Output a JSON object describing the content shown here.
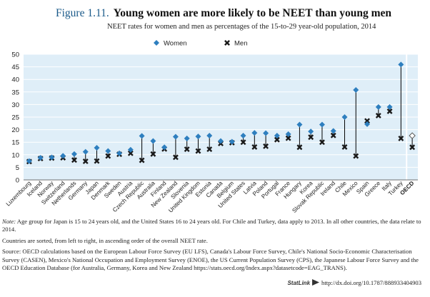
{
  "header": {
    "figure_number": "Figure 1.11.",
    "title": "Young women are more likely to be NEET than young men",
    "subtitle": "NEET rates for women and men as percentages of the 15-to-29 year-old population, 2014"
  },
  "chart_data": {
    "type": "scatter",
    "categories": [
      "Luxembourg",
      "Iceland",
      "Norway",
      "Switzerland",
      "Netherlands",
      "Germany",
      "Japan",
      "Denmark",
      "Sweden",
      "Austria",
      "Czech Republic",
      "Australia",
      "Finland",
      "New Zealand",
      "Slovenia",
      "United Kingdom",
      "Estonia",
      "Canada",
      "Belgium",
      "United States",
      "Latvia",
      "Poland",
      "Portugal",
      "France",
      "Hungary",
      "Korea",
      "Slovak Republic",
      "Ireland",
      "Chile",
      "Mexico",
      "Spain",
      "Greece",
      "Italy",
      "Turkey",
      "OECD"
    ],
    "series": [
      {
        "name": "Women",
        "marker": "diamond",
        "color": "#2e7fbf",
        "values": [
          7.5,
          8.8,
          9.0,
          9.6,
          10.3,
          11.2,
          12.8,
          11.5,
          10.6,
          12.0,
          17.5,
          15.5,
          13.0,
          17.2,
          16.5,
          17.3,
          17.6,
          15.5,
          15.2,
          17.6,
          18.7,
          18.6,
          17.6,
          18.2,
          22.0,
          19.3,
          22.0,
          19.5,
          25.0,
          35.8,
          22.2,
          29.0,
          29.0,
          45.9,
          17.6
        ]
      },
      {
        "name": "Men",
        "marker": "x",
        "color": "#1a1a1a",
        "values": [
          7.3,
          8.5,
          8.7,
          8.8,
          7.9,
          7.4,
          7.5,
          9.5,
          10.2,
          10.6,
          7.8,
          10.3,
          12.3,
          9.0,
          12.2,
          11.5,
          12.2,
          14.5,
          14.8,
          15.0,
          13.1,
          13.4,
          16.0,
          16.6,
          13.0,
          17.0,
          15.0,
          17.7,
          13.1,
          9.5,
          23.5,
          25.6,
          27.3,
          16.5,
          13.0
        ]
      }
    ],
    "highlight_category": "OECD",
    "highlight_marker": "hollow-diamond",
    "ylim": [
      0,
      50
    ],
    "yticks": [
      0,
      5,
      10,
      15,
      20,
      25,
      30,
      35,
      40,
      45,
      50
    ],
    "grid": true,
    "legend_position": "top-center",
    "plot_background": "#dfeef8",
    "gridline_color": "#ffffff",
    "connector_color": "#000000"
  },
  "notes": {
    "note_label": "Note:",
    "note_text": "Age group for Japan is 15 to 24 years old, and the United States 16 to 24 years old. For Chile and Turkey, data apply to 2013. In all other countries, the data relate to 2014.",
    "sort_text": "Countries are sorted, from left to right, in ascending order of the overall NEET rate.",
    "source_text": "Source: OECD calculations based on the European Labour Force Survey (EU LFS), Canada's Labour Force Survey, Chile's National Socio-Economic Characterisation Survey (CASEN), Mexico's National Occupation and Employment Survey (ENOE), the US Current Population Survey (CPS), the Japanese Labour Force Survey and the OECD Education Database (for Australia, Germany, Korea and New Zealand https://stats.oecd.org/Index.aspx?datasetcode=EAG_TRANS)."
  },
  "footer": {
    "statlink_label": "StatLink",
    "doi_link": "http://dx.doi.org/10.1787/888933404903"
  }
}
